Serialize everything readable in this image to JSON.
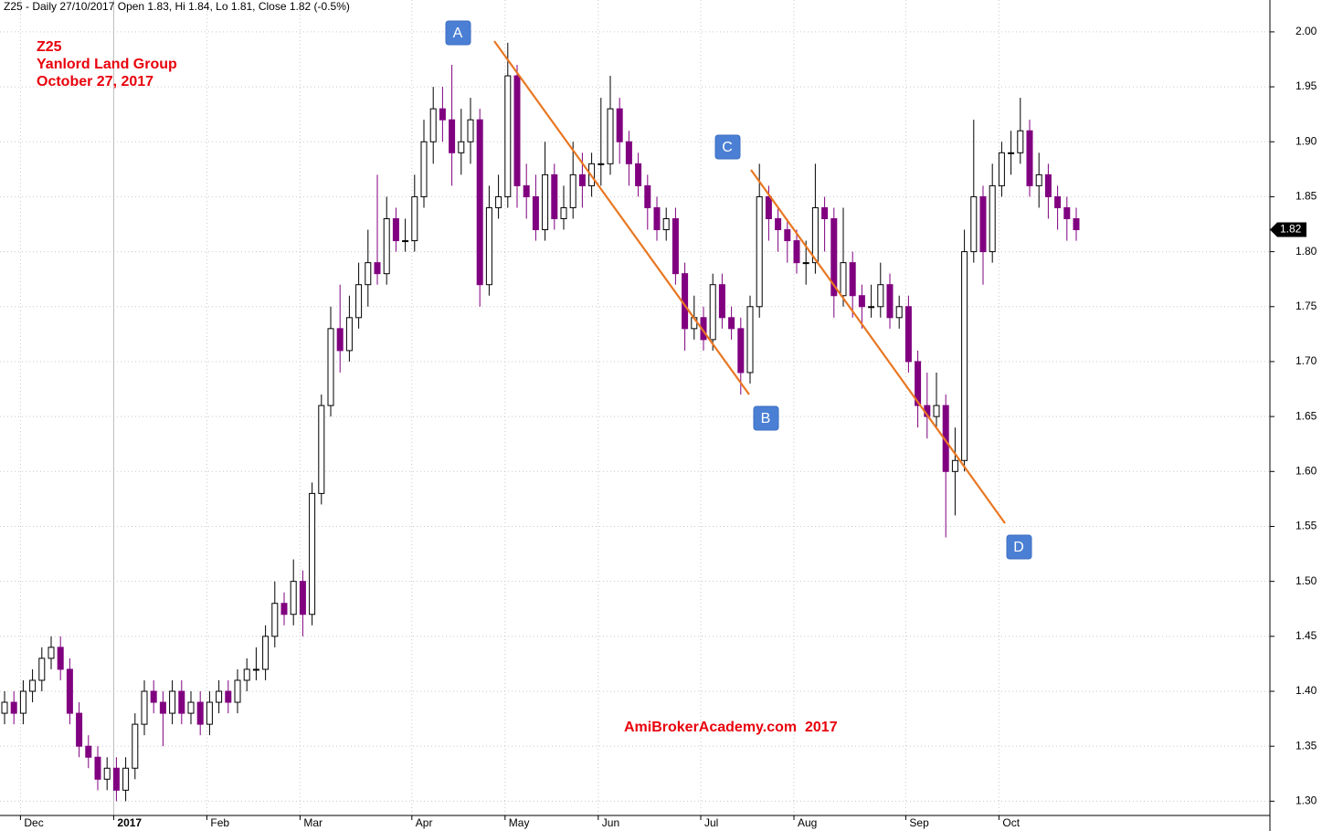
{
  "chart_data": {
    "type": "candlestick",
    "title": "Z25 - Daily 27/10/2017 Open 1.83, Hi 1.84, Lo 1.81, Close 1.82 (-0.5%)",
    "labels": {
      "symbol": "Z25",
      "company": "Yanlord Land Group",
      "date": "October 27, 2017"
    },
    "watermark": "AmiBrokerAcademy.com  2017",
    "wave_labels": [
      "A",
      "B",
      "C",
      "D"
    ],
    "up_color": "#ffffff",
    "down_color": "#800080",
    "grid": true,
    "ylim": [
      1.287,
      2.029
    ],
    "yticks": [
      {
        "value": 1.3,
        "label": "1.30"
      },
      1.35,
      {
        "value": 1.4,
        "label": "1.40"
      },
      1.45,
      {
        "value": 1.5,
        "label": "1.50"
      },
      1.55,
      {
        "value": 1.6,
        "label": "1.60"
      },
      1.65,
      {
        "value": 1.7,
        "label": "1.70"
      },
      1.75,
      {
        "value": 1.8,
        "label": "1.80"
      },
      1.85,
      {
        "value": 1.9,
        "label": "1.90"
      },
      1.95,
      {
        "value": 2.0,
        "label": "2.00"
      }
    ],
    "categories": [
      null,
      null,
      "Dec",
      null,
      null,
      null,
      null,
      null,
      null,
      null,
      null,
      null,
      "2017",
      null,
      null,
      null,
      null,
      null,
      null,
      null,
      null,
      null,
      "Feb",
      null,
      null,
      null,
      null,
      null,
      null,
      null,
      null,
      null,
      "Mar",
      null,
      null,
      null,
      null,
      null,
      null,
      null,
      null,
      null,
      null,
      null,
      "Apr",
      null,
      null,
      null,
      null,
      null,
      null,
      null,
      null,
      null,
      "May",
      null,
      null,
      null,
      null,
      null,
      null,
      null,
      null,
      null,
      "Jun",
      null,
      null,
      null,
      null,
      null,
      null,
      null,
      null,
      null,
      null,
      "Jul",
      null,
      null,
      null,
      null,
      null,
      null,
      null,
      null,
      null,
      "Aug",
      null,
      null,
      null,
      null,
      null,
      null,
      null,
      null,
      null,
      null,
      null,
      "Sep",
      null,
      null,
      null,
      null,
      null,
      null,
      null,
      null,
      null,
      "Oct",
      null,
      null,
      null,
      null,
      null,
      null,
      null,
      null
    ],
    "open": [
      1.38,
      1.39,
      1.38,
      1.4,
      1.41,
      1.43,
      1.44,
      1.42,
      1.38,
      1.35,
      1.34,
      1.32,
      1.33,
      1.31,
      1.33,
      1.37,
      1.4,
      1.39,
      1.38,
      1.4,
      1.38,
      1.39,
      1.37,
      1.39,
      1.4,
      1.39,
      1.41,
      1.42,
      1.42,
      1.45,
      1.48,
      1.47,
      1.5,
      1.47,
      1.58,
      1.66,
      1.73,
      1.71,
      1.74,
      1.77,
      1.79,
      1.78,
      1.83,
      1.81,
      1.81,
      1.85,
      1.9,
      1.93,
      1.92,
      1.89,
      1.9,
      1.92,
      1.77,
      1.84,
      1.85,
      1.96,
      1.86,
      1.85,
      1.82,
      1.87,
      1.83,
      1.84,
      1.87,
      1.86,
      1.88,
      1.88,
      1.93,
      1.9,
      1.88,
      1.86,
      1.84,
      1.82,
      1.83,
      1.78,
      1.73,
      1.74,
      1.72,
      1.77,
      1.74,
      1.73,
      1.69,
      1.75,
      1.85,
      1.83,
      1.82,
      1.81,
      1.79,
      1.79,
      1.84,
      1.83,
      1.76,
      1.79,
      1.76,
      1.75,
      1.75,
      1.77,
      1.74,
      1.75,
      1.7,
      1.66,
      1.65,
      1.66,
      1.6,
      1.61,
      1.8,
      1.85,
      1.8,
      1.86,
      1.89,
      1.89,
      1.91,
      1.86,
      1.87,
      1.85,
      1.84,
      1.83
    ],
    "high": [
      1.4,
      1.4,
      1.41,
      1.42,
      1.44,
      1.45,
      1.45,
      1.43,
      1.39,
      1.36,
      1.35,
      1.34,
      1.34,
      1.34,
      1.38,
      1.41,
      1.41,
      1.4,
      1.41,
      1.41,
      1.4,
      1.4,
      1.4,
      1.41,
      1.41,
      1.42,
      1.43,
      1.44,
      1.46,
      1.5,
      1.49,
      1.52,
      1.51,
      1.59,
      1.67,
      1.75,
      1.77,
      1.76,
      1.79,
      1.82,
      1.87,
      1.85,
      1.84,
      1.83,
      1.87,
      1.92,
      1.95,
      1.95,
      1.97,
      1.93,
      1.94,
      1.93,
      1.86,
      1.87,
      1.99,
      1.97,
      1.88,
      1.87,
      1.9,
      1.88,
      1.86,
      1.9,
      1.89,
      1.89,
      1.94,
      1.96,
      1.94,
      1.91,
      1.89,
      1.87,
      1.85,
      1.84,
      1.84,
      1.79,
      1.76,
      1.75,
      1.78,
      1.78,
      1.75,
      1.74,
      1.76,
      1.88,
      1.86,
      1.84,
      1.83,
      1.82,
      1.81,
      1.88,
      1.85,
      1.84,
      1.84,
      1.8,
      1.77,
      1.77,
      1.79,
      1.78,
      1.76,
      1.76,
      1.71,
      1.69,
      1.69,
      1.67,
      1.64,
      1.82,
      1.92,
      1.86,
      1.88,
      1.9,
      1.91,
      1.94,
      1.92,
      1.89,
      1.88,
      1.86,
      1.85,
      1.84
    ],
    "low": [
      1.37,
      1.37,
      1.37,
      1.39,
      1.4,
      1.42,
      1.41,
      1.37,
      1.34,
      1.33,
      1.31,
      1.31,
      1.3,
      1.3,
      1.32,
      1.36,
      1.38,
      1.35,
      1.37,
      1.37,
      1.37,
      1.36,
      1.36,
      1.38,
      1.38,
      1.38,
      1.4,
      1.41,
      1.41,
      1.44,
      1.46,
      1.46,
      1.45,
      1.46,
      1.57,
      1.65,
      1.69,
      1.7,
      1.73,
      1.75,
      1.77,
      1.77,
      1.8,
      1.8,
      1.8,
      1.84,
      1.88,
      1.9,
      1.86,
      1.87,
      1.88,
      1.75,
      1.76,
      1.83,
      1.84,
      1.84,
      1.83,
      1.81,
      1.81,
      1.82,
      1.82,
      1.83,
      1.84,
      1.85,
      1.86,
      1.87,
      1.88,
      1.86,
      1.85,
      1.82,
      1.81,
      1.81,
      1.77,
      1.71,
      1.72,
      1.71,
      1.71,
      1.73,
      1.72,
      1.67,
      1.68,
      1.74,
      1.81,
      1.8,
      1.79,
      1.78,
      1.77,
      1.78,
      1.8,
      1.74,
      1.75,
      1.74,
      1.73,
      1.74,
      1.74,
      1.73,
      1.73,
      1.69,
      1.64,
      1.63,
      1.64,
      1.54,
      1.56,
      1.6,
      1.79,
      1.77,
      1.79,
      1.85,
      1.87,
      1.88,
      1.85,
      1.84,
      1.83,
      1.82,
      1.81,
      1.81
    ],
    "close": [
      1.39,
      1.38,
      1.4,
      1.41,
      1.43,
      1.44,
      1.42,
      1.38,
      1.35,
      1.34,
      1.32,
      1.33,
      1.31,
      1.33,
      1.37,
      1.4,
      1.39,
      1.38,
      1.4,
      1.38,
      1.39,
      1.37,
      1.39,
      1.4,
      1.39,
      1.41,
      1.42,
      1.42,
      1.45,
      1.48,
      1.47,
      1.5,
      1.47,
      1.58,
      1.66,
      1.73,
      1.71,
      1.74,
      1.77,
      1.79,
      1.78,
      1.83,
      1.81,
      1.81,
      1.85,
      1.9,
      1.93,
      1.92,
      1.89,
      1.9,
      1.92,
      1.77,
      1.84,
      1.85,
      1.96,
      1.86,
      1.85,
      1.82,
      1.87,
      1.83,
      1.84,
      1.87,
      1.86,
      1.88,
      1.88,
      1.93,
      1.9,
      1.88,
      1.86,
      1.84,
      1.82,
      1.83,
      1.78,
      1.73,
      1.74,
      1.72,
      1.77,
      1.74,
      1.73,
      1.69,
      1.75,
      1.85,
      1.83,
      1.82,
      1.81,
      1.79,
      1.79,
      1.84,
      1.83,
      1.76,
      1.79,
      1.76,
      1.75,
      1.75,
      1.77,
      1.74,
      1.75,
      1.7,
      1.66,
      1.65,
      1.66,
      1.6,
      1.61,
      1.8,
      1.85,
      1.8,
      1.86,
      1.89,
      1.89,
      1.91,
      1.86,
      1.87,
      1.85,
      1.84,
      1.83,
      1.82
    ]
  }
}
